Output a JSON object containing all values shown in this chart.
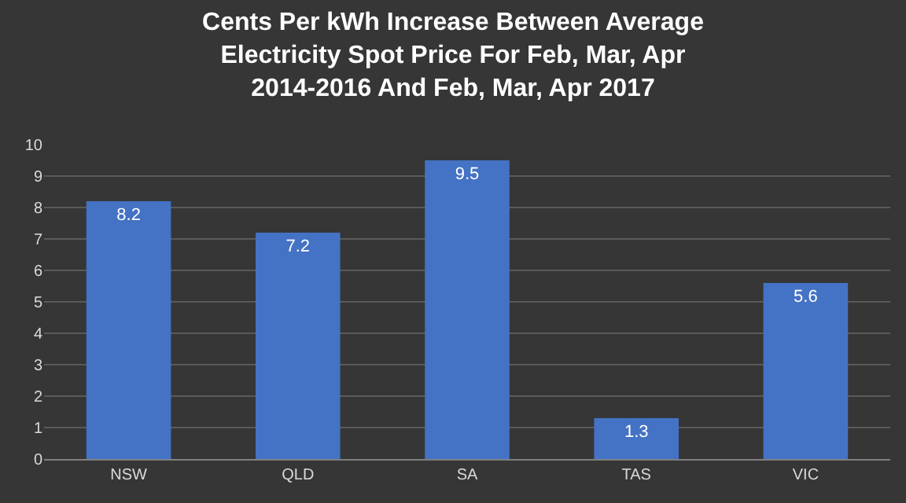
{
  "chart_data": {
    "type": "bar",
    "title": "Cents Per kWh Increase Between Average\nElectricity Spot Price For Feb, Mar, Apr\n2014-2016 And Feb, Mar, Apr 2017",
    "categories": [
      "NSW",
      "QLD",
      "SA",
      "TAS",
      "VIC"
    ],
    "values": [
      8.2,
      7.2,
      9.5,
      1.3,
      5.6
    ],
    "color": "#4472c4",
    "ylim": [
      0,
      10
    ],
    "yticks": [
      0,
      1,
      2,
      3,
      4,
      5,
      6,
      7,
      8,
      9,
      10
    ],
    "grid": "y",
    "data_labels": true
  }
}
